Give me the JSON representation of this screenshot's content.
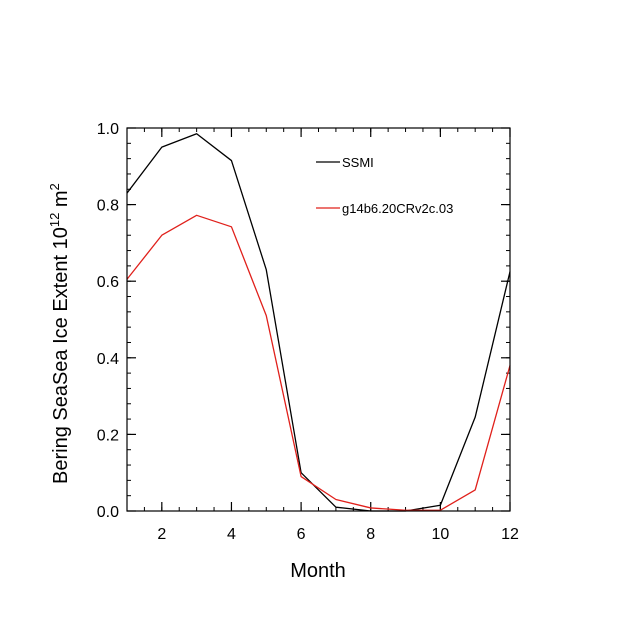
{
  "chart_data": {
    "type": "line",
    "title": "",
    "xlabel": "Month",
    "ylabel_main": "Bering SeaSea Ice Extent 10",
    "ylabel_exp": "12",
    "ylabel_unit": " m",
    "ylabel_unit_exp": "2",
    "xlim": [
      1,
      12
    ],
    "ylim": [
      0.0,
      1.0
    ],
    "x_ticks": [
      2,
      4,
      6,
      8,
      10,
      12
    ],
    "x_tick_labels": [
      "2",
      "4",
      "6",
      "8",
      "10",
      "12"
    ],
    "y_ticks": [
      0.0,
      0.2,
      0.4,
      0.6,
      0.8,
      1.0
    ],
    "y_tick_labels": [
      "0.0",
      "0.2",
      "0.4",
      "0.6",
      "0.8",
      "1.0"
    ],
    "x": [
      1,
      2,
      3,
      4,
      5,
      6,
      7,
      8,
      9,
      10,
      11,
      12
    ],
    "series": [
      {
        "name": "SSMI",
        "color": "#000000",
        "values": [
          0.83,
          0.95,
          0.985,
          0.915,
          0.63,
          0.1,
          0.01,
          0.0,
          0.0,
          0.015,
          0.245,
          0.625
        ]
      },
      {
        "name": "g14b6.20CRv2c.03",
        "color": "#e0201b",
        "values": [
          0.605,
          0.72,
          0.772,
          0.742,
          0.51,
          0.09,
          0.03,
          0.008,
          0.002,
          0.002,
          0.055,
          0.38
        ]
      }
    ],
    "legend_position": "top-right"
  }
}
